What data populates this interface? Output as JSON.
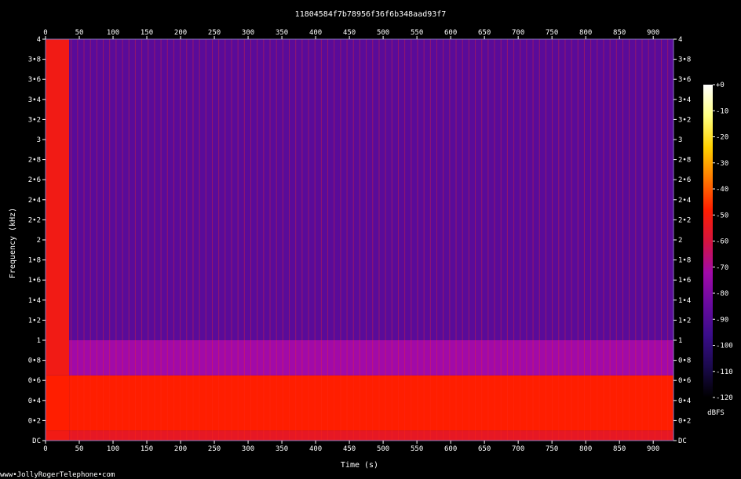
{
  "chart_data": {
    "type": "heatmap",
    "title": "11804584f7b78956f36f6b348aad93f7",
    "xlabel": "Time (s)",
    "ylabel": "Frequency (kHz)",
    "xlim": [
      0,
      930
    ],
    "ylim": [
      0,
      4
    ],
    "x_ticks": [
      "0",
      "50",
      "100",
      "150",
      "200",
      "250",
      "300",
      "350",
      "400",
      "450",
      "500",
      "550",
      "600",
      "650",
      "700",
      "750",
      "800",
      "850",
      "900"
    ],
    "x_tick_values": [
      0,
      50,
      100,
      150,
      200,
      250,
      300,
      350,
      400,
      450,
      500,
      550,
      600,
      650,
      700,
      750,
      800,
      850,
      900
    ],
    "y_ticks": [
      "DC",
      "0•2",
      "0•4",
      "0•6",
      "0•8",
      "1",
      "1•2",
      "1•4",
      "1•6",
      "1•8",
      "2",
      "2•2",
      "2•4",
      "2•6",
      "2•8",
      "3",
      "3•2",
      "3•4",
      "3•6",
      "3•8",
      "4"
    ],
    "y_tick_values": [
      0,
      0.2,
      0.4,
      0.6,
      0.8,
      1,
      1.2,
      1.4,
      1.6,
      1.8,
      2,
      2.2,
      2.4,
      2.6,
      2.8,
      3,
      3.2,
      3.4,
      3.6,
      3.8,
      4
    ],
    "colorbar": {
      "label": "dBFS",
      "ticks": [
        "+0",
        "-10",
        "-20",
        "-30",
        "-40",
        "-50",
        "-60",
        "-70",
        "-80",
        "-90",
        "-100",
        "-110",
        "-120"
      ],
      "tick_values": [
        0,
        -10,
        -20,
        -30,
        -40,
        -50,
        -60,
        -70,
        -80,
        -90,
        -100,
        -110,
        -120
      ],
      "range": [
        -120,
        0
      ]
    },
    "bands": [
      {
        "f_low": 0.0,
        "f_high": 0.1,
        "level_dbfs": -55
      },
      {
        "f_low": 0.1,
        "f_high": 0.65,
        "level_dbfs": -48
      },
      {
        "f_low": 0.65,
        "f_high": 1.0,
        "level_dbfs": -72
      },
      {
        "f_low": 1.0,
        "f_high": 4.0,
        "level_dbfs": -88
      }
    ],
    "segments": [
      {
        "t_start": 0,
        "t_end": 35,
        "level_dbfs": -52
      },
      {
        "t_start": 35,
        "t_end": 930,
        "level_dbfs": -85
      }
    ],
    "colors": {
      "background": "#000000",
      "axis": "#ffffff",
      "colormap": [
        "#000000",
        "#1b0a4e",
        "#3a0d8a",
        "#6a0aa0",
        "#a10aa8",
        "#d4143e",
        "#ff1e00",
        "#ff7a00",
        "#ffd000",
        "#ffff80",
        "#ffffff"
      ]
    }
  },
  "footer": {
    "watermark": "www•JollyRogerTelephone•com"
  }
}
